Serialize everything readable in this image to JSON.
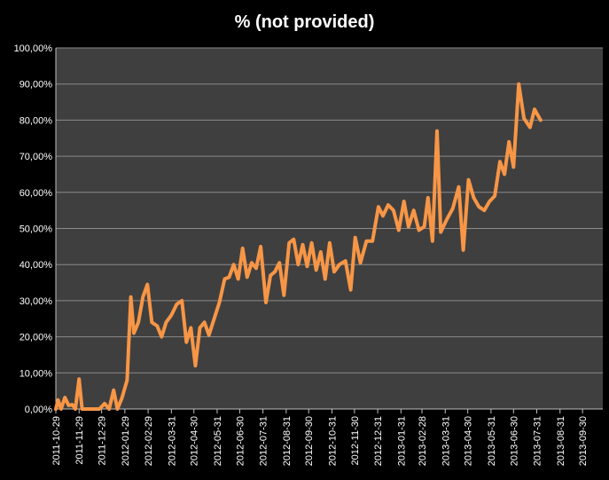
{
  "chart_data": {
    "type": "line",
    "title": "% (not provided)",
    "xlabel": "",
    "ylabel": "",
    "ylim": [
      0,
      100
    ],
    "y_tick_labels": [
      "0,00%",
      "10,00%",
      "20,00%",
      "30,00%",
      "40,00%",
      "50,00%",
      "60,00%",
      "70,00%",
      "80,00%",
      "90,00%",
      "100,00%"
    ],
    "x_tick_labels": [
      "2011-10-29",
      "2011-11-29",
      "2011-12-29",
      "2012-01-29",
      "2012-02-29",
      "2012-03-31",
      "2012-04-30",
      "2012-05-31",
      "2012-06-30",
      "2012-07-31",
      "2012-08-31",
      "2012-09-30",
      "2012-10-31",
      "2012-11-30",
      "2012-12-31",
      "2013-01-31",
      "2013-02-28",
      "2013-03-31",
      "2013-04-30",
      "2013-05-31",
      "2013-06-30",
      "2013-07-31",
      "2013-08-31",
      "2013-09-30"
    ],
    "x_start": "2011-10-29",
    "x_end": "2013-10-27",
    "grid": true,
    "legend": "none",
    "colors": {
      "background": "#000000",
      "plot_area": "#3f3f3f",
      "gridline": "#8a8a8a",
      "line": "#f79646",
      "text": "#ffffff"
    },
    "series": [
      {
        "values": [
          [
            "2011-10-29",
            0.0
          ],
          [
            "2011-11-01",
            2.5
          ],
          [
            "2011-11-05",
            0.0
          ],
          [
            "2011-11-10",
            3.2
          ],
          [
            "2011-11-15",
            1.0
          ],
          [
            "2011-11-20",
            1.2
          ],
          [
            "2011-11-24",
            0.0
          ],
          [
            "2011-11-29",
            8.3
          ],
          [
            "2011-12-03",
            0.0
          ],
          [
            "2011-12-08",
            0.0
          ],
          [
            "2011-12-14",
            0.0
          ],
          [
            "2011-12-20",
            0.0
          ],
          [
            "2011-12-26",
            0.0
          ],
          [
            "2012-01-02",
            1.5
          ],
          [
            "2012-01-08",
            0.0
          ],
          [
            "2012-01-14",
            5.2
          ],
          [
            "2012-01-19",
            0.0
          ],
          [
            "2012-01-25",
            3.0
          ],
          [
            "2012-02-01",
            8.0
          ],
          [
            "2012-02-06",
            31.0
          ],
          [
            "2012-02-10",
            21.0
          ],
          [
            "2012-02-16",
            24.0
          ],
          [
            "2012-02-22",
            31.0
          ],
          [
            "2012-02-28",
            34.5
          ],
          [
            "2012-03-05",
            24.0
          ],
          [
            "2012-03-12",
            23.0
          ],
          [
            "2012-03-18",
            20.0
          ],
          [
            "2012-03-24",
            24.0
          ],
          [
            "2012-03-31",
            26.0
          ],
          [
            "2012-04-07",
            29.0
          ],
          [
            "2012-04-14",
            30.0
          ],
          [
            "2012-04-20",
            18.5
          ],
          [
            "2012-04-26",
            22.5
          ],
          [
            "2012-05-02",
            12.0
          ],
          [
            "2012-05-08",
            22.5
          ],
          [
            "2012-05-14",
            24.0
          ],
          [
            "2012-05-20",
            20.5
          ],
          [
            "2012-05-27",
            25.0
          ],
          [
            "2012-06-03",
            29.5
          ],
          [
            "2012-06-10",
            36.0
          ],
          [
            "2012-06-16",
            36.5
          ],
          [
            "2012-06-22",
            40.0
          ],
          [
            "2012-06-28",
            36.0
          ],
          [
            "2012-07-04",
            44.5
          ],
          [
            "2012-07-10",
            36.5
          ],
          [
            "2012-07-16",
            40.5
          ],
          [
            "2012-07-22",
            39.0
          ],
          [
            "2012-07-28",
            45.0
          ],
          [
            "2012-08-04",
            29.5
          ],
          [
            "2012-08-10",
            37.0
          ],
          [
            "2012-08-16",
            38.0
          ],
          [
            "2012-08-22",
            40.5
          ],
          [
            "2012-08-28",
            31.5
          ],
          [
            "2012-09-04",
            46.0
          ],
          [
            "2012-09-10",
            47.0
          ],
          [
            "2012-09-16",
            40.0
          ],
          [
            "2012-09-22",
            45.5
          ],
          [
            "2012-09-28",
            39.5
          ],
          [
            "2012-10-04",
            46.0
          ],
          [
            "2012-10-10",
            38.5
          ],
          [
            "2012-10-16",
            43.5
          ],
          [
            "2012-10-22",
            36.0
          ],
          [
            "2012-10-28",
            46.0
          ],
          [
            "2012-11-03",
            38.0
          ],
          [
            "2012-11-10",
            40.0
          ],
          [
            "2012-11-18",
            41.0
          ],
          [
            "2012-11-25",
            33.0
          ],
          [
            "2012-12-01",
            47.5
          ],
          [
            "2012-12-08",
            40.5
          ],
          [
            "2012-12-16",
            46.5
          ],
          [
            "2012-12-24",
            46.5
          ],
          [
            "2013-01-01",
            56.0
          ],
          [
            "2013-01-07",
            53.5
          ],
          [
            "2013-01-14",
            56.5
          ],
          [
            "2013-01-21",
            55.0
          ],
          [
            "2013-01-28",
            49.5
          ],
          [
            "2013-02-04",
            57.5
          ],
          [
            "2013-02-10",
            50.5
          ],
          [
            "2013-02-17",
            55.0
          ],
          [
            "2013-02-24",
            49.5
          ],
          [
            "2013-03-03",
            50.5
          ],
          [
            "2013-03-08",
            58.5
          ],
          [
            "2013-03-14",
            46.5
          ],
          [
            "2013-03-20",
            77.0
          ],
          [
            "2013-03-25",
            49.0
          ],
          [
            "2013-04-02",
            52.5
          ],
          [
            "2013-04-10",
            55.5
          ],
          [
            "2013-04-18",
            61.5
          ],
          [
            "2013-04-24",
            44.0
          ],
          [
            "2013-05-01",
            63.5
          ],
          [
            "2013-05-08",
            58.5
          ],
          [
            "2013-05-15",
            56.0
          ],
          [
            "2013-05-22",
            55.0
          ],
          [
            "2013-05-29",
            57.5
          ],
          [
            "2013-06-05",
            59.0
          ],
          [
            "2013-06-12",
            68.5
          ],
          [
            "2013-06-18",
            65.0
          ],
          [
            "2013-06-24",
            74.0
          ],
          [
            "2013-06-30",
            67.0
          ],
          [
            "2013-07-07",
            90.0
          ],
          [
            "2013-07-14",
            80.5
          ],
          [
            "2013-07-22",
            78.0
          ],
          [
            "2013-07-28",
            83.0
          ],
          [
            "2013-08-05",
            80.0
          ]
        ]
      }
    ]
  }
}
